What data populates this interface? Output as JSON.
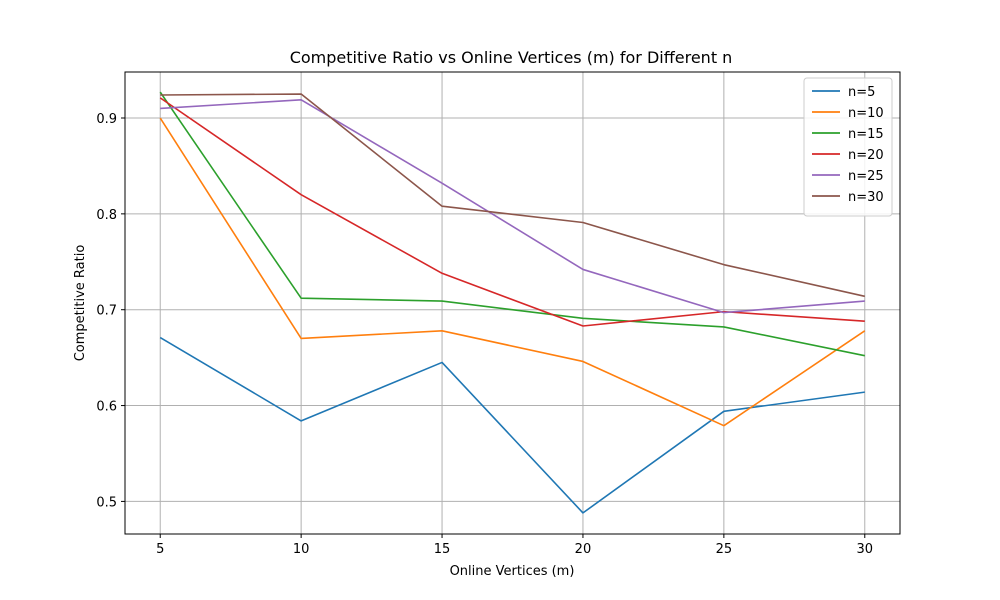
{
  "chart_data": {
    "type": "line",
    "title": "Competitive Ratio vs Online Vertices (m) for Different n",
    "xlabel": "Online Vertices (m)",
    "ylabel": "Competitive Ratio",
    "x": [
      5,
      10,
      15,
      20,
      25,
      30
    ],
    "xlim": [
      3.75,
      31.25
    ],
    "ylim": [
      0.466,
      0.948
    ],
    "xticks": [
      "5",
      "10",
      "15",
      "20",
      "25",
      "30"
    ],
    "yticks": [
      "0.5",
      "0.6",
      "0.7",
      "0.8",
      "0.9"
    ],
    "grid": true,
    "legend_position": "top-right",
    "series": [
      {
        "name": "n=5",
        "color": "#1f77b4",
        "values": [
          0.671,
          0.584,
          0.645,
          0.488,
          0.594,
          0.614
        ]
      },
      {
        "name": "n=10",
        "color": "#ff7f0e",
        "values": [
          0.9,
          0.67,
          0.678,
          0.646,
          0.579,
          0.678
        ]
      },
      {
        "name": "n=15",
        "color": "#2ca02c",
        "values": [
          0.927,
          0.712,
          0.709,
          0.691,
          0.682,
          0.652
        ]
      },
      {
        "name": "n=20",
        "color": "#d62728",
        "values": [
          0.921,
          0.82,
          0.738,
          0.683,
          0.698,
          0.688
        ]
      },
      {
        "name": "n=25",
        "color": "#9467bd",
        "values": [
          0.91,
          0.919,
          0.832,
          0.742,
          0.697,
          0.709
        ]
      },
      {
        "name": "n=30",
        "color": "#8c564b",
        "values": [
          0.924,
          0.925,
          0.808,
          0.791,
          0.747,
          0.714
        ]
      }
    ]
  }
}
